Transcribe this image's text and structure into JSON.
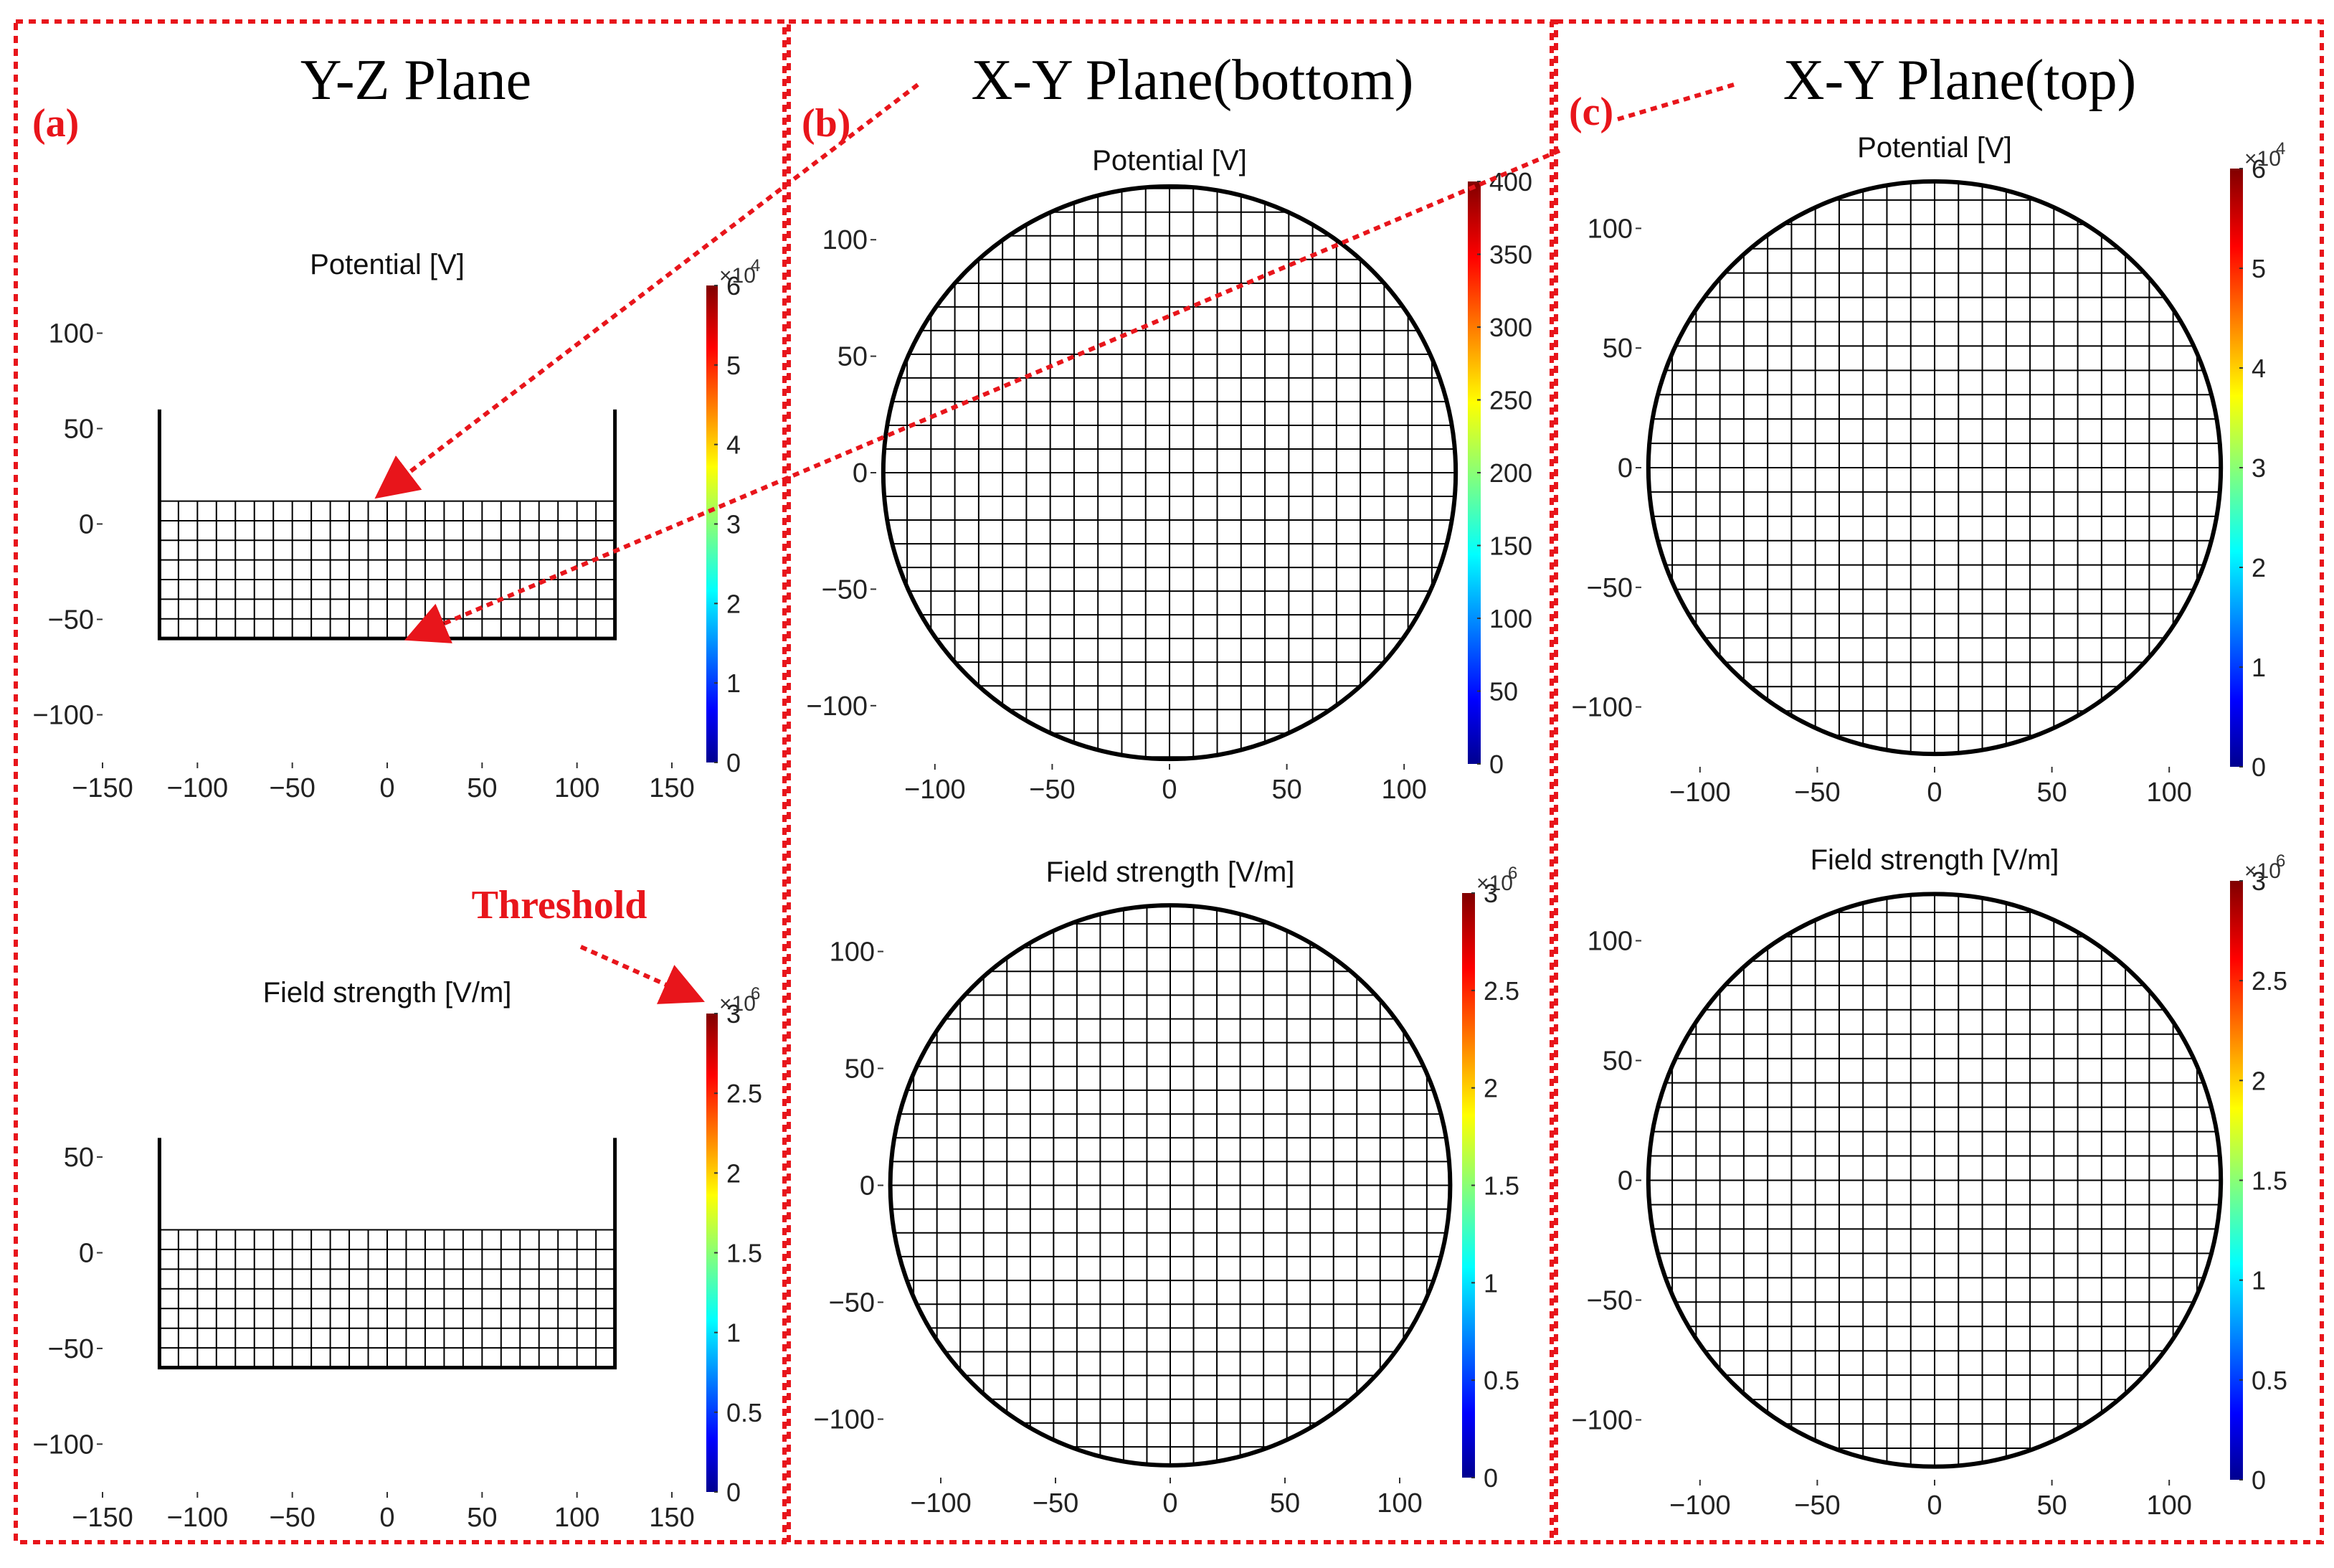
{
  "panels": [
    {
      "label": "(a)",
      "title": "Y-Z Plane"
    },
    {
      "label": "(b)",
      "title": "X-Y Plane(bottom)"
    },
    {
      "label": "(c)",
      "title": "X-Y Plane(top)"
    }
  ],
  "annotation": {
    "threshold_text": "Threshold"
  },
  "colors": {
    "accent": "#e8151b",
    "grid_line": "#000000",
    "background": "#ffffff"
  },
  "chart_data": [
    {
      "id": "yz-potential",
      "type": "heatmap",
      "title": "Potential [V]",
      "colorbar": {
        "min": 0,
        "max": 6,
        "ticks": [
          0,
          1,
          2,
          3,
          4,
          5,
          6
        ],
        "multiplier": "×10",
        "exponent": "4"
      },
      "x": {
        "range": [
          -150,
          150
        ],
        "ticks": [
          -150,
          -100,
          -50,
          0,
          50,
          100,
          150
        ]
      },
      "y": {
        "range": [
          -125,
          125
        ],
        "ticks": [
          -100,
          -50,
          0,
          50,
          100
        ]
      }
    },
    {
      "id": "yz-field",
      "type": "heatmap",
      "title": "Field strength [V/m]",
      "colorbar": {
        "min": 0,
        "max": 3,
        "ticks": [
          0,
          0.5,
          1,
          1.5,
          2,
          2.5,
          3
        ],
        "multiplier": "×10",
        "exponent": "6"
      },
      "x": {
        "range": [
          -150,
          150
        ],
        "ticks": [
          -150,
          -100,
          -50,
          0,
          50,
          100,
          150
        ]
      },
      "y": {
        "range": [
          -125,
          125
        ],
        "ticks": [
          -100,
          -50,
          0,
          50
        ]
      }
    },
    {
      "id": "xy-bottom-potential",
      "type": "heatmap",
      "title": "Potential [V]",
      "colorbar": {
        "min": 0,
        "max": 400,
        "ticks": [
          0,
          50,
          100,
          150,
          200,
          250,
          300,
          350,
          400
        ],
        "multiplier": "",
        "exponent": ""
      },
      "x": {
        "range": [
          -125,
          125
        ],
        "ticks": [
          -100,
          -50,
          0,
          50,
          100
        ]
      },
      "y": {
        "range": [
          -125,
          125
        ],
        "ticks": [
          -100,
          -50,
          0,
          50,
          100
        ]
      }
    },
    {
      "id": "xy-bottom-field",
      "type": "heatmap",
      "title": "Field strength [V/m]",
      "colorbar": {
        "min": 0,
        "max": 3,
        "ticks": [
          0,
          0.5,
          1,
          1.5,
          2,
          2.5,
          3
        ],
        "multiplier": "×10",
        "exponent": "6"
      },
      "x": {
        "range": [
          -125,
          125
        ],
        "ticks": [
          -100,
          -50,
          0,
          50,
          100
        ]
      },
      "y": {
        "range": [
          -125,
          125
        ],
        "ticks": [
          -100,
          -50,
          0,
          50,
          100
        ]
      }
    },
    {
      "id": "xy-top-potential",
      "type": "heatmap",
      "title": "Potential [V]",
      "colorbar": {
        "min": 0,
        "max": 6,
        "ticks": [
          0,
          1,
          2,
          3,
          4,
          5,
          6
        ],
        "multiplier": "×10",
        "exponent": "4"
      },
      "x": {
        "range": [
          -125,
          125
        ],
        "ticks": [
          -100,
          -50,
          0,
          50,
          100
        ]
      },
      "y": {
        "range": [
          -125,
          125
        ],
        "ticks": [
          -100,
          -50,
          0,
          50,
          100
        ]
      }
    },
    {
      "id": "xy-top-field",
      "type": "heatmap",
      "title": "Field strength [V/m]",
      "colorbar": {
        "min": 0,
        "max": 3,
        "ticks": [
          0,
          0.5,
          1,
          1.5,
          2,
          2.5,
          3
        ],
        "multiplier": "×10",
        "exponent": "6"
      },
      "x": {
        "range": [
          -125,
          125
        ],
        "ticks": [
          -100,
          -50,
          0,
          50,
          100
        ]
      },
      "y": {
        "range": [
          -125,
          125
        ],
        "ticks": [
          -100,
          -50,
          0,
          50,
          100
        ]
      }
    }
  ]
}
